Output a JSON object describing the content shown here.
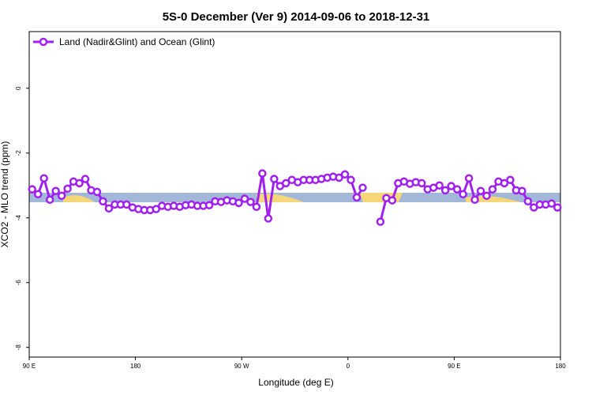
{
  "chart_data": {
    "type": "line",
    "title": "5S-0 December (Ver 9)   2014-09-06 to 2018-12-31",
    "xlabel": "Longitude (deg E)",
    "ylabel": "XCO2 - MLO trend (ppm)",
    "xlim": [
      90,
      540
    ],
    "xticks": [
      {
        "value": 90,
        "label": "90 E"
      },
      {
        "value": 180,
        "label": "180"
      },
      {
        "value": 270,
        "label": "90 W"
      },
      {
        "value": 360,
        "label": "0"
      },
      {
        "value": 450,
        "label": "90 E"
      },
      {
        "value": 540,
        "label": "180"
      }
    ],
    "ylim": [
      -8.3,
      1.75
    ],
    "yticks": [
      0,
      -2,
      -4,
      -6,
      -8
    ],
    "legend": "top-left",
    "series": [
      {
        "name": "Land (Nadir&Glint) and Ocean (Glint)",
        "color": "#a020f0",
        "x": [
          92.5,
          97.5,
          102.5,
          107.5,
          112.5,
          117.5,
          122.5,
          127.5,
          132.5,
          137.5,
          142.5,
          147.5,
          152.5,
          157.5,
          162.5,
          167.5,
          172.5,
          177.5,
          182.5,
          187.5,
          192.5,
          197.5,
          202.5,
          207.5,
          212.5,
          217.5,
          222.5,
          227.5,
          232.5,
          237.5,
          242.5,
          247.5,
          252.5,
          257.5,
          262.5,
          267.5,
          272.5,
          277.5,
          282.5,
          287.5,
          292.5,
          297.5,
          302.5,
          307.5,
          312.5,
          317.5,
          322.5,
          327.5,
          332.5,
          337.5,
          342.5,
          347.5,
          352.5,
          357.5,
          362.5,
          367.5,
          372.5,
          377.5,
          382.5,
          387.5,
          392.5,
          397.5,
          402.5,
          407.5,
          412.5,
          417.5,
          422.5,
          427.5,
          432.5,
          437.5,
          442.5,
          447.5,
          452.5,
          457.5,
          462.5,
          467.5,
          472.5,
          477.5,
          482.5,
          487.5,
          492.5,
          497.5,
          502.5,
          507.5,
          512.5,
          517.5,
          522.5,
          527.5,
          532.5,
          537.5
        ],
        "values": [
          -3.12,
          -3.27,
          -2.78,
          -3.44,
          -3.17,
          -3.32,
          -3.1,
          -2.88,
          -2.93,
          -2.8,
          -3.15,
          -3.2,
          -3.49,
          -3.71,
          -3.59,
          -3.59,
          -3.59,
          -3.68,
          -3.73,
          -3.76,
          -3.76,
          -3.73,
          -3.63,
          -3.66,
          -3.63,
          -3.66,
          -3.61,
          -3.59,
          -3.63,
          -3.63,
          -3.61,
          -3.49,
          -3.51,
          -3.46,
          -3.49,
          -3.54,
          -3.41,
          -3.51,
          -3.66,
          -2.63,
          -4.02,
          -2.8,
          -3.02,
          -2.93,
          -2.83,
          -2.9,
          -2.83,
          -2.83,
          -2.83,
          -2.8,
          -2.76,
          -2.73,
          -2.76,
          -2.66,
          -2.83,
          -3.37,
          -3.07,
          null,
          null,
          -4.12,
          -3.39,
          -3.46,
          -2.93,
          -2.88,
          -2.95,
          -2.9,
          -2.93,
          -3.12,
          -3.07,
          -3.0,
          -3.15,
          -3.02,
          -3.12,
          -3.27,
          -2.78,
          -3.44,
          -3.17,
          -3.32,
          -3.12,
          -2.88,
          -2.93,
          -2.83,
          -3.15,
          -3.17,
          -3.49,
          -3.68,
          -3.59,
          -3.59,
          -3.56,
          -3.68
        ]
      }
    ]
  }
}
